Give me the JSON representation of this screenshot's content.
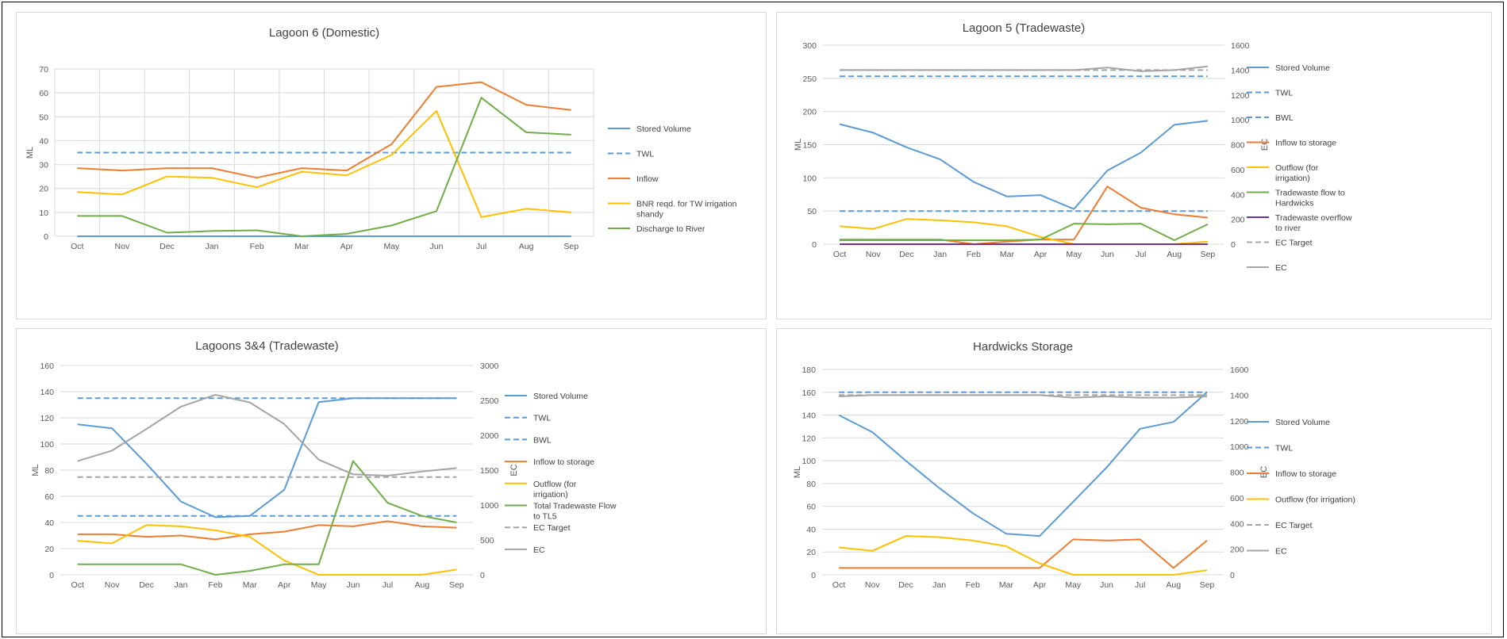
{
  "chart_data": [
    {
      "type": "line",
      "title": "Lagoon 6 (Domestic)",
      "ylabel": "ML",
      "ylim": [
        0,
        70
      ],
      "yticks": [
        0,
        10,
        20,
        30,
        40,
        50,
        60,
        70
      ],
      "grid": true,
      "legend": "right",
      "categories": [
        "Oct",
        "Nov",
        "Dec",
        "Jan",
        "Feb",
        "Mar",
        "Apr",
        "May",
        "Jun",
        "Jul",
        "Aug",
        "Sep"
      ],
      "series": [
        {
          "name": "Stored Volume",
          "color": "#5B9BD5",
          "dash": false,
          "values": [
            0,
            0,
            0,
            0,
            0,
            0,
            0,
            0,
            0,
            0,
            0,
            0
          ]
        },
        {
          "name": "TWL",
          "color": "#5B9BD5",
          "dash": true,
          "values": [
            35,
            35,
            35,
            35,
            35,
            35,
            35,
            35,
            35,
            35,
            35,
            35
          ]
        },
        {
          "name": "Inflow",
          "color": "#ED7D31",
          "dash": false,
          "values": [
            28.5,
            27.5,
            28.5,
            28.5,
            24.5,
            28.5,
            27.5,
            38.5,
            62.5,
            64.5,
            55,
            52.8
          ]
        },
        {
          "name": "BNR reqd. for TW irrigation shandy",
          "color": "#FFC000",
          "dash": false,
          "values": [
            18.5,
            17.5,
            25,
            24.5,
            20.5,
            27,
            25.5,
            34,
            52.5,
            8,
            11.5,
            10
          ]
        },
        {
          "name": "Discharge to River",
          "color": "#70AD47",
          "dash": false,
          "values": [
            8.5,
            8.5,
            1.5,
            2.2,
            2.5,
            0,
            1,
            4.5,
            10.5,
            58,
            43.5,
            42.5
          ]
        }
      ]
    },
    {
      "type": "line",
      "title": "Lagoon 5 (Tradewaste)",
      "ylabel": "ML",
      "y2label": "EC",
      "ylim": [
        0,
        300
      ],
      "yticks": [
        0,
        50,
        100,
        150,
        200,
        250,
        300
      ],
      "y2lim": [
        0,
        1600
      ],
      "y2ticks": [
        0,
        200,
        400,
        600,
        800,
        1000,
        1200,
        1400,
        1600
      ],
      "grid": false,
      "legend": "right",
      "categories": [
        "Oct",
        "Nov",
        "Dec",
        "Jan",
        "Feb",
        "Mar",
        "Apr",
        "May",
        "Jun",
        "Jul",
        "Aug",
        "Sep"
      ],
      "series": [
        {
          "name": "Stored Volume",
          "color": "#5B9BD5",
          "dash": false,
          "axis": "left",
          "values": [
            181,
            168,
            146,
            128,
            94,
            72,
            74,
            53,
            111,
            138,
            180,
            186
          ]
        },
        {
          "name": "TWL",
          "color": "#5B9BD5",
          "dash": true,
          "axis": "left",
          "values": [
            253,
            253,
            253,
            253,
            253,
            253,
            253,
            253,
            253,
            253,
            253,
            253
          ]
        },
        {
          "name": "BWL",
          "color": "#5B9BD5",
          "dash": true,
          "axis": "left",
          "values": [
            50,
            50,
            50,
            50,
            50,
            50,
            50,
            50,
            50,
            50,
            50,
            50
          ]
        },
        {
          "name": "Inflow to storage",
          "color": "#ED7D31",
          "dash": false,
          "axis": "left",
          "values": [
            7,
            7,
            7,
            7,
            0,
            4,
            7,
            7,
            87,
            55,
            45,
            40
          ]
        },
        {
          "name": "Outflow (for irrigation)",
          "color": "#FFC000",
          "dash": false,
          "axis": "left",
          "values": [
            27,
            23,
            38,
            36,
            33,
            27,
            11,
            0,
            0,
            0,
            0,
            4
          ]
        },
        {
          "name": "Tradewaste flow to Hardwicks",
          "color": "#70AD47",
          "dash": false,
          "axis": "left",
          "values": [
            6,
            6,
            6,
            6,
            6,
            6,
            7,
            31,
            30,
            31,
            6,
            30
          ]
        },
        {
          "name": "Tradewaste overflow to river",
          "color": "#7030A0",
          "dash": false,
          "axis": "left",
          "values": [
            0,
            0,
            0,
            0,
            0,
            0,
            0,
            0,
            0,
            0,
            0,
            0
          ]
        },
        {
          "name": "EC Target",
          "color": "#A5A5A5",
          "dash": true,
          "axis": "right",
          "values": [
            1400,
            1400,
            1400,
            1400,
            1400,
            1400,
            1400,
            1400,
            1400,
            1400,
            1400,
            1400
          ]
        },
        {
          "name": "EC",
          "color": "#A5A5A5",
          "dash": false,
          "axis": "right",
          "values": [
            1400,
            1400,
            1400,
            1400,
            1400,
            1400,
            1400,
            1400,
            1420,
            1390,
            1400,
            1430
          ]
        }
      ]
    },
    {
      "type": "line",
      "title": "Lagoons 3&4 (Tradewaste)",
      "ylabel": "ML",
      "y2label": "EC",
      "ylim": [
        0,
        160
      ],
      "yticks": [
        0,
        20,
        40,
        60,
        80,
        100,
        120,
        140,
        160
      ],
      "y2lim": [
        0,
        3000
      ],
      "y2ticks": [
        0,
        500,
        1000,
        1500,
        2000,
        2500,
        3000
      ],
      "grid": false,
      "legend": "right",
      "categories": [
        "Oct",
        "Nov",
        "Dec",
        "Jan",
        "Feb",
        "Mar",
        "Apr",
        "May",
        "Jun",
        "Jul",
        "Aug",
        "Sep"
      ],
      "series": [
        {
          "name": "Stored Volume",
          "color": "#5B9BD5",
          "dash": false,
          "axis": "left",
          "values": [
            115,
            112,
            85,
            56,
            44,
            45,
            65,
            132,
            135,
            135,
            135,
            135
          ]
        },
        {
          "name": "TWL",
          "color": "#5B9BD5",
          "dash": true,
          "axis": "left",
          "values": [
            135,
            135,
            135,
            135,
            135,
            135,
            135,
            135,
            135,
            135,
            135,
            135
          ]
        },
        {
          "name": "BWL",
          "color": "#5B9BD5",
          "dash": true,
          "axis": "left",
          "values": [
            45,
            45,
            45,
            45,
            45,
            45,
            45,
            45,
            45,
            45,
            45,
            45
          ]
        },
        {
          "name": "Inflow to storage",
          "color": "#ED7D31",
          "dash": false,
          "axis": "left",
          "values": [
            31,
            31,
            29,
            30,
            27,
            31,
            33,
            38,
            37,
            41,
            37,
            36
          ]
        },
        {
          "name": "Outflow (for irrigation)",
          "color": "#FFC000",
          "dash": false,
          "axis": "left",
          "values": [
            26,
            24,
            38,
            37,
            34,
            29,
            11,
            0,
            0,
            0,
            0,
            4
          ]
        },
        {
          "name": "Total Tradewaste Flow to TL5",
          "color": "#70AD47",
          "dash": false,
          "axis": "left",
          "values": [
            8,
            8,
            8,
            8,
            0,
            3,
            8,
            8,
            87,
            55,
            45,
            40
          ]
        },
        {
          "name": "EC Target",
          "color": "#A5A5A5",
          "dash": true,
          "axis": "right",
          "values": [
            1400,
            1400,
            1400,
            1400,
            1400,
            1400,
            1400,
            1400,
            1400,
            1400,
            1400,
            1400
          ]
        },
        {
          "name": "EC",
          "color": "#A5A5A5",
          "dash": false,
          "axis": "right",
          "values": [
            1630,
            1780,
            2090,
            2410,
            2580,
            2470,
            2160,
            1650,
            1440,
            1420,
            1480,
            1530
          ]
        }
      ]
    },
    {
      "type": "line",
      "title": "Hardwicks Storage",
      "ylabel": "ML",
      "y2label": "EC",
      "ylim": [
        0,
        180
      ],
      "yticks": [
        0,
        20,
        40,
        60,
        80,
        100,
        120,
        140,
        160,
        180
      ],
      "y2lim": [
        0,
        1600
      ],
      "y2ticks": [
        0,
        200,
        400,
        600,
        800,
        1000,
        1200,
        1400,
        1600
      ],
      "grid": false,
      "legend": "right",
      "categories": [
        "Oct",
        "Nov",
        "Dec",
        "Jan",
        "Feb",
        "Mar",
        "Apr",
        "May",
        "Jun",
        "Jul",
        "Aug",
        "Sep"
      ],
      "series": [
        {
          "name": "Stored Volume",
          "color": "#5B9BD5",
          "dash": false,
          "axis": "left",
          "values": [
            140,
            125,
            100,
            76,
            54,
            36,
            34,
            64,
            94,
            128,
            134,
            160
          ]
        },
        {
          "name": "TWL",
          "color": "#5B9BD5",
          "dash": true,
          "axis": "left",
          "values": [
            160,
            160,
            160,
            160,
            160,
            160,
            160,
            160,
            160,
            160,
            160,
            160
          ]
        },
        {
          "name": "Inflow to storage",
          "color": "#ED7D31",
          "dash": false,
          "axis": "left",
          "values": [
            6,
            6,
            6,
            6,
            6,
            6,
            6,
            31,
            30,
            31,
            6,
            30
          ]
        },
        {
          "name": "Outflow (for irrigation)",
          "color": "#FFC000",
          "dash": false,
          "axis": "left",
          "values": [
            24,
            21,
            34,
            33,
            30,
            25,
            10,
            0,
            0,
            0,
            0,
            4
          ]
        },
        {
          "name": "EC Target",
          "color": "#A5A5A5",
          "dash": true,
          "axis": "right",
          "values": [
            1400,
            1400,
            1400,
            1400,
            1400,
            1400,
            1400,
            1400,
            1400,
            1400,
            1400,
            1400
          ]
        },
        {
          "name": "EC",
          "color": "#A5A5A5",
          "dash": false,
          "axis": "right",
          "values": [
            1390,
            1400,
            1400,
            1400,
            1400,
            1400,
            1400,
            1380,
            1390,
            1380,
            1380,
            1390
          ]
        }
      ]
    }
  ]
}
